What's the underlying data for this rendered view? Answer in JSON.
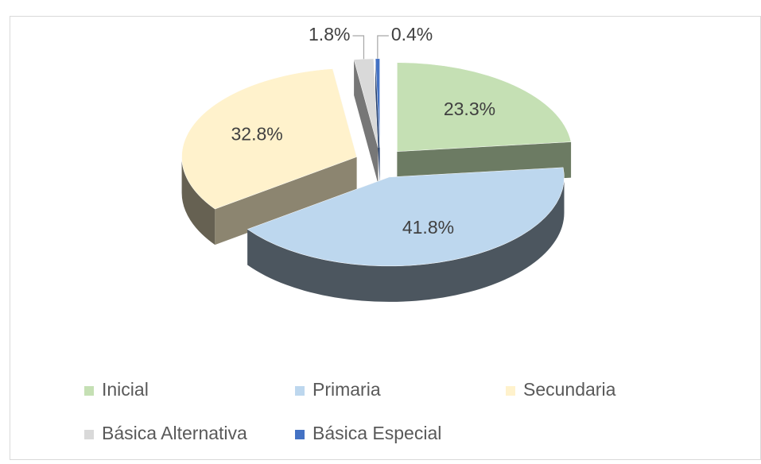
{
  "chart_data": {
    "type": "pie3d",
    "categories": [
      "Inicial",
      "Primaria",
      "Secundaria",
      "Básica Alternativa",
      "Básica Especial"
    ],
    "values": [
      23.3,
      41.8,
      32.8,
      1.8,
      0.4
    ],
    "value_labels": [
      "23.3%",
      "41.8%",
      "32.8%",
      "1.8%",
      "0.4%"
    ],
    "colors": [
      "#c5e0b4",
      "#bdd7ee",
      "#fff2cc",
      "#d9d9d9",
      "#4472c4"
    ],
    "legend": "bottom"
  }
}
